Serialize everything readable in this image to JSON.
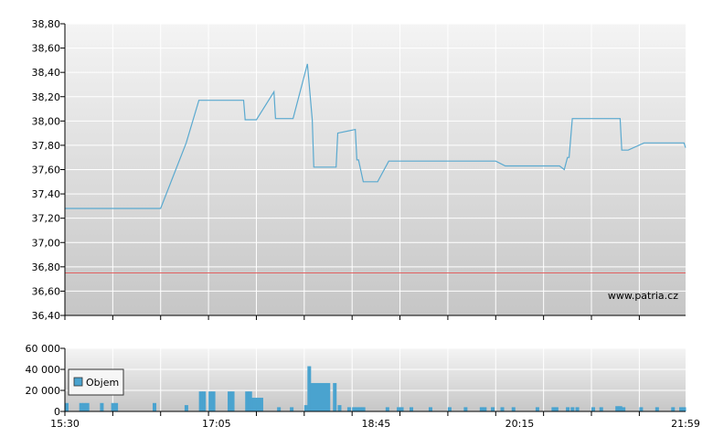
{
  "chart_data": [
    {
      "type": "line",
      "title": "",
      "xlabel": "",
      "ylabel": "",
      "ylim": [
        36.4,
        38.8
      ],
      "yticks": [
        "38,80",
        "38,60",
        "38,40",
        "38,20",
        "38,00",
        "37,80",
        "37,60",
        "37,40",
        "37,20",
        "37,00",
        "36,80",
        "36,60",
        "36,40"
      ],
      "grid": true,
      "reference_line": 36.75,
      "watermark": "www.patria.cz",
      "colors": {
        "line": "#5aa9cf",
        "reference": "#e06060",
        "grid": "#ffffff"
      },
      "points": [
        [
          "15:30",
          37.28
        ],
        [
          "16:30",
          37.28
        ],
        [
          "16:46",
          37.82
        ],
        [
          "16:54",
          38.17
        ],
        [
          "17:22",
          38.17
        ],
        [
          "17:23",
          38.01
        ],
        [
          "17:30",
          38.01
        ],
        [
          "17:41",
          38.24
        ],
        [
          "17:42",
          38.02
        ],
        [
          "17:53",
          38.02
        ],
        [
          "18:02",
          38.47
        ],
        [
          "18:05",
          38.01
        ],
        [
          "18:06",
          37.62
        ],
        [
          "18:20",
          37.62
        ],
        [
          "18:21",
          37.9
        ],
        [
          "18:32",
          37.93
        ],
        [
          "18:33",
          37.68
        ],
        [
          "18:34",
          37.68
        ],
        [
          "18:37",
          37.5
        ],
        [
          "18:46",
          37.5
        ],
        [
          "18:53",
          37.67
        ],
        [
          "20:00",
          37.67
        ],
        [
          "20:06",
          37.63
        ],
        [
          "20:40",
          37.63
        ],
        [
          "20:43",
          37.6
        ],
        [
          "20:45",
          37.7
        ],
        [
          "20:46",
          37.7
        ],
        [
          "20:48",
          38.02
        ],
        [
          "21:18",
          38.02
        ],
        [
          "21:19",
          37.76
        ],
        [
          "21:23",
          37.76
        ],
        [
          "21:33",
          37.82
        ],
        [
          "21:58",
          37.82
        ],
        [
          "21:59",
          37.78
        ]
      ]
    },
    {
      "type": "bar",
      "title": "",
      "xlabel": "",
      "ylabel": "",
      "ylim": [
        0,
        60000
      ],
      "yticks": [
        "60 000",
        "40 000",
        "20 000",
        "0"
      ],
      "xticks": [
        "15:30",
        "17:05",
        "18:45",
        "20:15",
        "21:59"
      ],
      "legend": {
        "placement": "left",
        "label": "Objem"
      },
      "colors": {
        "bar": "#4aa3cf"
      },
      "bars": [
        [
          "15:30",
          8000
        ],
        [
          "15:39",
          8000
        ],
        [
          "15:41",
          8000
        ],
        [
          "15:43",
          8000
        ],
        [
          "15:52",
          8000
        ],
        [
          "15:59",
          8000
        ],
        [
          "16:01",
          8000
        ],
        [
          "16:25",
          8000
        ],
        [
          "16:45",
          6000
        ],
        [
          "16:54",
          19000
        ],
        [
          "16:56",
          19000
        ],
        [
          "17:00",
          19000
        ],
        [
          "17:02",
          19000
        ],
        [
          "17:12",
          19000
        ],
        [
          "17:14",
          19000
        ],
        [
          "17:23",
          19000
        ],
        [
          "17:25",
          19000
        ],
        [
          "17:26",
          13000
        ],
        [
          "17:28",
          13000
        ],
        [
          "17:30",
          13000
        ],
        [
          "17:32",
          13000
        ],
        [
          "17:43",
          4000
        ],
        [
          "17:51",
          4000
        ],
        [
          "18:00",
          6000
        ],
        [
          "18:02",
          43000
        ],
        [
          "18:04",
          27000
        ],
        [
          "18:06",
          27000
        ],
        [
          "18:08",
          27000
        ],
        [
          "18:10",
          27000
        ],
        [
          "18:12",
          27000
        ],
        [
          "18:14",
          27000
        ],
        [
          "18:18",
          27000
        ],
        [
          "18:21",
          6000
        ],
        [
          "18:27",
          4000
        ],
        [
          "18:30",
          4000
        ],
        [
          "18:32",
          4000
        ],
        [
          "18:34",
          4000
        ],
        [
          "18:36",
          4000
        ],
        [
          "18:51",
          4000
        ],
        [
          "18:58",
          4000
        ],
        [
          "19:00",
          4000
        ],
        [
          "19:06",
          4000
        ],
        [
          "19:18",
          4000
        ],
        [
          "19:30",
          4000
        ],
        [
          "19:40",
          4000
        ],
        [
          "19:50",
          4000
        ],
        [
          "19:52",
          4000
        ],
        [
          "19:57",
          4000
        ],
        [
          "20:03",
          4000
        ],
        [
          "20:10",
          4000
        ],
        [
          "20:25",
          4000
        ],
        [
          "20:35",
          4000
        ],
        [
          "20:37",
          4000
        ],
        [
          "20:44",
          4000
        ],
        [
          "20:47",
          4000
        ],
        [
          "20:50",
          4000
        ],
        [
          "21:00",
          4000
        ],
        [
          "21:05",
          4000
        ],
        [
          "21:15",
          5000
        ],
        [
          "21:17",
          5000
        ],
        [
          "21:19",
          4000
        ],
        [
          "21:30",
          4000
        ],
        [
          "21:40",
          4000
        ],
        [
          "21:50",
          4000
        ],
        [
          "21:55",
          4000
        ],
        [
          "21:57",
          4000
        ]
      ]
    }
  ]
}
